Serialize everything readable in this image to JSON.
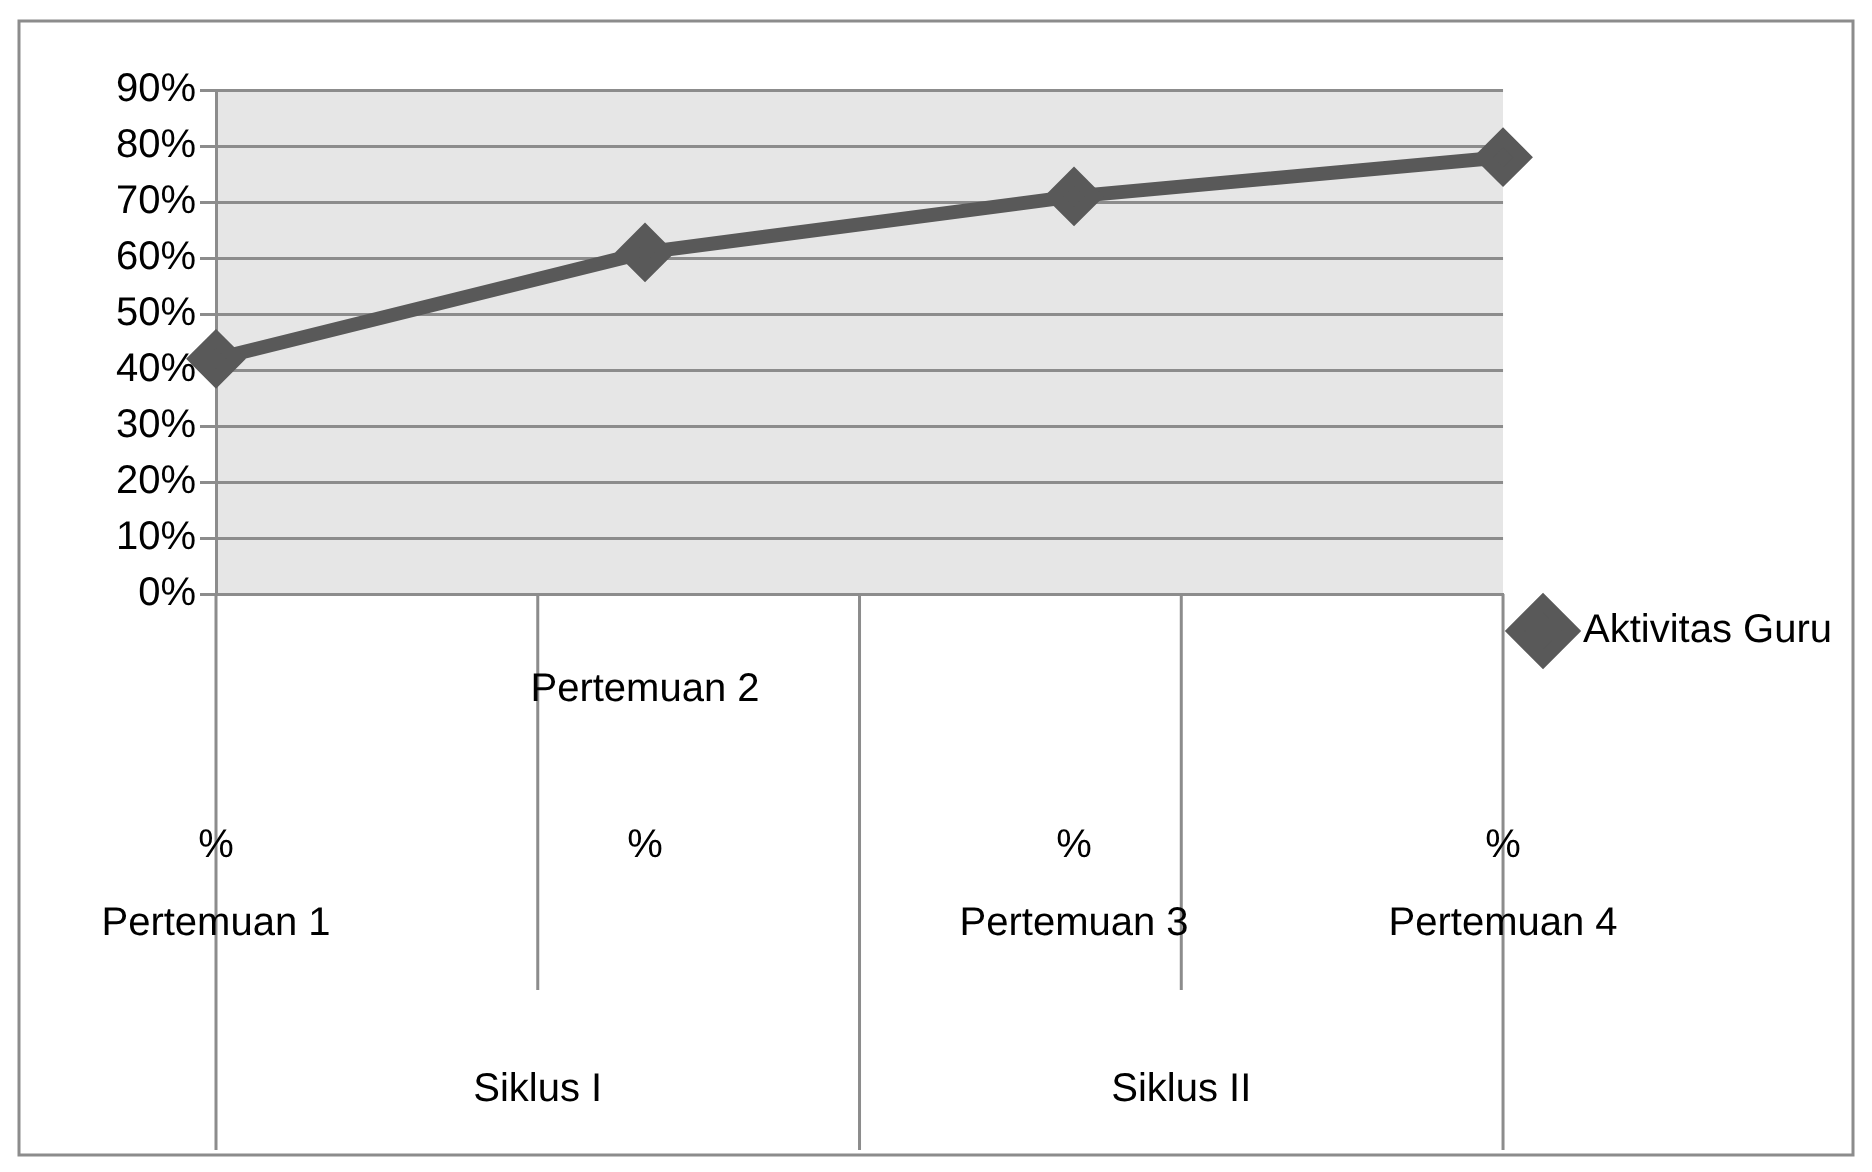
{
  "chart_data": {
    "type": "line",
    "categories": [
      "\n\n%\nPertemuan 1",
      "Pertemuan 2\n\n%",
      "\n\n%\nPertemuan 3",
      "\n\n%\nPertemuan 4"
    ],
    "series": [
      {
        "name": "Aktivitas Guru",
        "color": "#595959",
        "values": [
          42,
          61,
          71,
          78
        ]
      }
    ],
    "ylim": [
      0,
      90
    ],
    "yticks": [
      {
        "value": 0,
        "label": "0%"
      },
      {
        "value": 10,
        "label": "10%"
      },
      {
        "value": 20,
        "label": "20%"
      },
      {
        "value": 30,
        "label": "30%"
      },
      {
        "value": 40,
        "label": "40%"
      },
      {
        "value": 50,
        "label": "50%"
      },
      {
        "value": 60,
        "label": "60%"
      },
      {
        "value": 70,
        "label": "70%"
      },
      {
        "value": 80,
        "label": "80%"
      },
      {
        "value": 90,
        "label": "90%"
      }
    ],
    "annotations": [
      "Siklus I",
      "Siklus II"
    ],
    "grid": "y",
    "legend": "right",
    "marker": "diamond",
    "line_style": "solid"
  }
}
